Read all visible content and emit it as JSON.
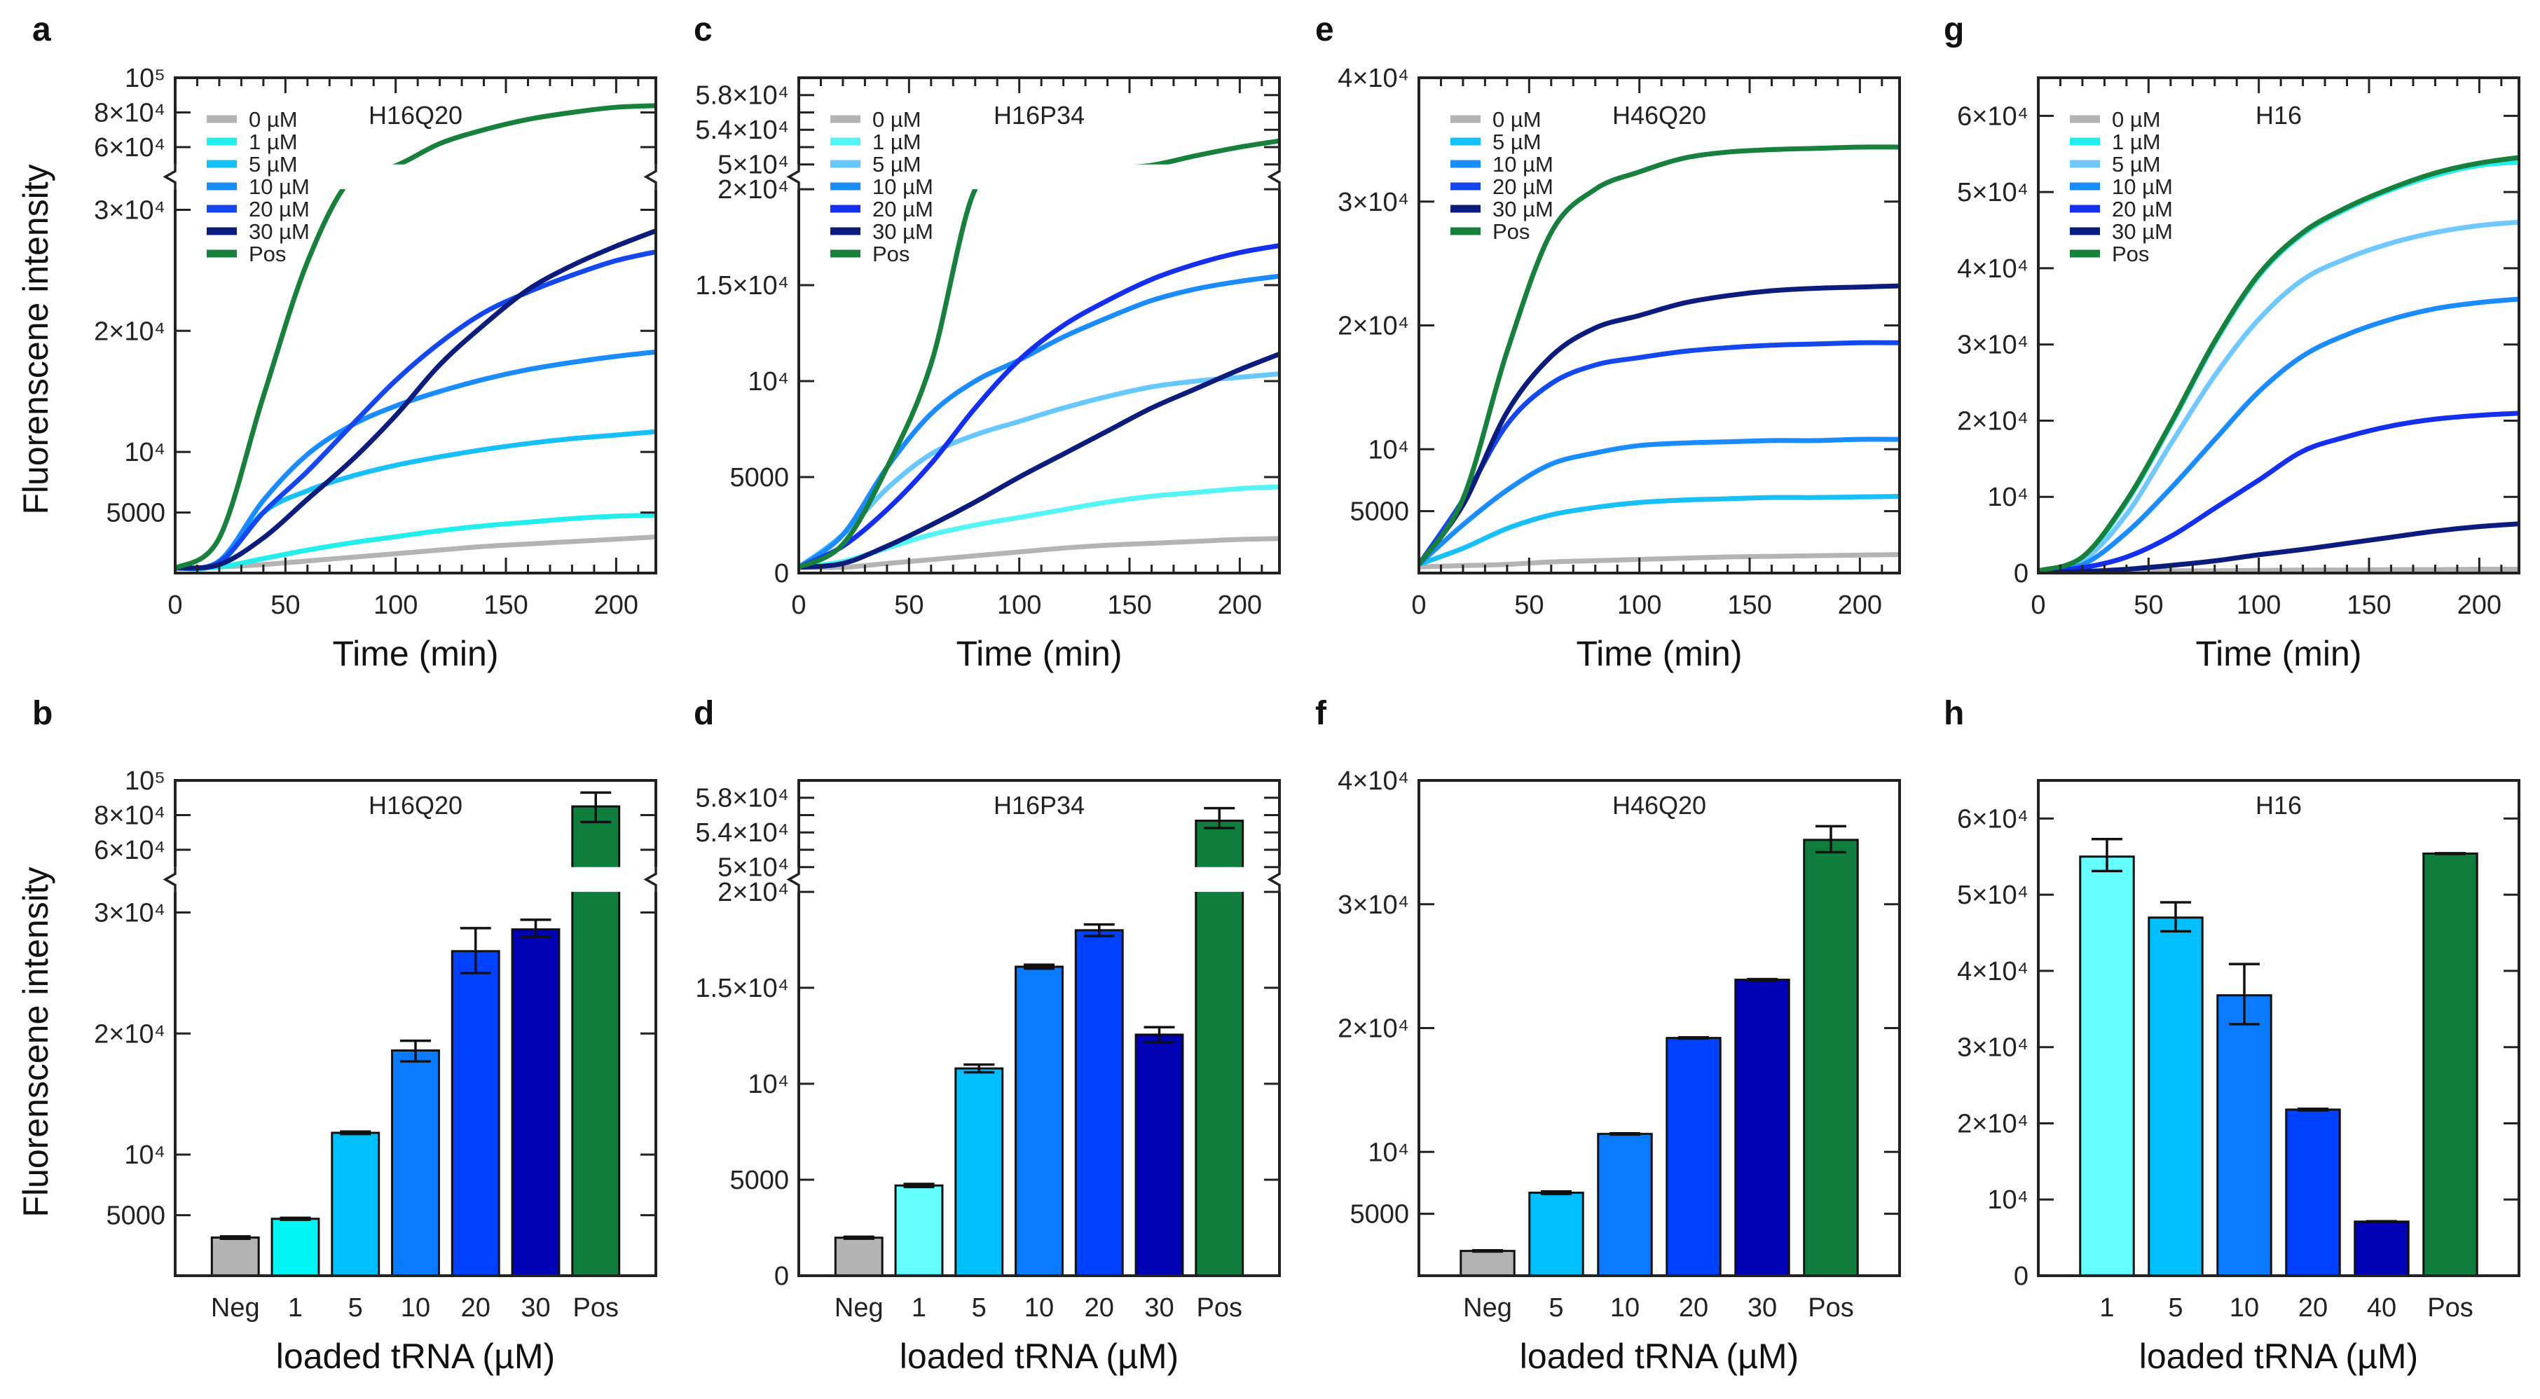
{
  "chart_data": [
    {
      "panel": "a",
      "type": "line",
      "title": "H16Q20",
      "xlabel": "Time (min)",
      "ylabel": "Fluorenscene intensity",
      "xlim": [
        0,
        218
      ],
      "x_ticks": [
        0,
        50,
        100,
        150,
        200
      ],
      "y_segments": [
        [
          0,
          31700
        ],
        [
          50000,
          100000
        ]
      ],
      "y_ticks": [
        {
          "v": 5000,
          "label": "5000"
        },
        {
          "v": 10000,
          "label": "10⁴"
        },
        {
          "v": 20000,
          "label": "2×10⁴"
        },
        {
          "v": 30000,
          "label": "3×10⁴"
        },
        {
          "v": 60000,
          "label": "6×10⁴"
        },
        {
          "v": 80000,
          "label": "8×10⁴"
        },
        {
          "v": 100000,
          "label": "10⁵"
        }
      ],
      "x": [
        0,
        20,
        40,
        60,
        80,
        100,
        120,
        140,
        160,
        180,
        200,
        220
      ],
      "series": [
        {
          "name": "0 µM",
          "color": "#b4b4b4",
          "values": [
            400,
            500,
            700,
            1000,
            1300,
            1600,
            1900,
            2200,
            2400,
            2600,
            2800,
            3000
          ]
        },
        {
          "name": "1 µM",
          "color": "#22eeee",
          "values": [
            400,
            500,
            1200,
            1900,
            2500,
            3000,
            3500,
            3900,
            4200,
            4500,
            4700,
            4800
          ]
        },
        {
          "name": "5 µM",
          "color": "#18c0fa",
          "values": [
            400,
            800,
            5000,
            6800,
            8000,
            8900,
            9600,
            10200,
            10700,
            11100,
            11400,
            11700
          ]
        },
        {
          "name": "10 µM",
          "color": "#1a8cff",
          "values": [
            400,
            1000,
            6000,
            9800,
            12200,
            13800,
            15000,
            16000,
            16800,
            17400,
            17900,
            18300
          ]
        },
        {
          "name": "20 µM",
          "color": "#1448ee",
          "values": [
            400,
            900,
            5000,
            8400,
            12200,
            15900,
            19000,
            21500,
            23200,
            24600,
            25800,
            26600
          ]
        },
        {
          "name": "30 µM",
          "color": "#0c1c7c",
          "values": [
            400,
            700,
            2900,
            6100,
            9300,
            13000,
            17200,
            20500,
            23400,
            25400,
            27000,
            28400
          ]
        },
        {
          "name": "Pos",
          "color": "#17803c",
          "values": [
            400,
            2900,
            14600,
            25700,
            40000,
            49000,
            62000,
            70000,
            76000,
            80000,
            83000,
            84000
          ]
        }
      ]
    },
    {
      "panel": "b",
      "type": "bar",
      "title": "H16Q20",
      "xlabel": "loaded tRNA (µM)",
      "ylabel": "Fluorenscene intensity",
      "y_segments": [
        [
          0,
          31700
        ],
        [
          50000,
          100000
        ]
      ],
      "y_ticks": [
        {
          "v": 5000,
          "label": "5000"
        },
        {
          "v": 10000,
          "label": "10⁴"
        },
        {
          "v": 20000,
          "label": "2×10⁴"
        },
        {
          "v": 30000,
          "label": "3×10⁴"
        },
        {
          "v": 60000,
          "label": "6×10⁴"
        },
        {
          "v": 80000,
          "label": "8×10⁴"
        },
        {
          "v": 100000,
          "label": "10⁵"
        }
      ],
      "categories": [
        "Neg",
        "1",
        "5",
        "10",
        "20",
        "30",
        "Pos"
      ],
      "values": [
        3150,
        4700,
        11800,
        18600,
        26800,
        28600,
        85000
      ],
      "errors": [
        [
          3050,
          3250
        ],
        [
          4620,
          4780
        ],
        [
          11700,
          11900
        ],
        [
          17700,
          19400
        ],
        [
          25000,
          28700
        ],
        [
          28000,
          29400
        ],
        [
          76000,
          93000
        ]
      ],
      "colors": [
        "#b3b3b3",
        "#00f5f5",
        "#00bfff",
        "#0a7bff",
        "#0040ff",
        "#0000b4",
        "#0f7d3c"
      ]
    },
    {
      "panel": "c",
      "type": "line",
      "title": "H16P34",
      "xlabel": "Time (min)",
      "xlim": [
        0,
        218
      ],
      "x_ticks": [
        0,
        50,
        100,
        150,
        200
      ],
      "y_segments": [
        [
          0,
          20000
        ],
        [
          50000,
          60000
        ]
      ],
      "y_ticks": [
        {
          "v": 0,
          "label": "0"
        },
        {
          "v": 5000,
          "label": "5000"
        },
        {
          "v": 10000,
          "label": "10⁴"
        },
        {
          "v": 15000,
          "label": "1.5×10⁴"
        },
        {
          "v": 20000,
          "label": "2×10⁴"
        },
        {
          "v": 50000,
          "label": "5×10⁴"
        },
        {
          "v": 54000,
          "label": "5.4×10⁴"
        },
        {
          "v": 58000,
          "label": "5.8×10⁴"
        }
      ],
      "y_minor_ticks": [
        52000,
        56000
      ],
      "x": [
        0,
        20,
        40,
        60,
        80,
        100,
        120,
        140,
        160,
        180,
        200,
        220
      ],
      "series": [
        {
          "name": "0 µM",
          "color": "#b4b4b4",
          "values": [
            300,
            300,
            500,
            700,
            900,
            1100,
            1300,
            1450,
            1550,
            1650,
            1750,
            1800
          ]
        },
        {
          "name": "1 µM",
          "color": "#55f5f5",
          "values": [
            300,
            600,
            1300,
            2000,
            2500,
            2900,
            3300,
            3700,
            4000,
            4200,
            4400,
            4500
          ]
        },
        {
          "name": "5 µM",
          "color": "#66c8ff",
          "values": [
            300,
            2000,
            4400,
            6200,
            7200,
            7900,
            8600,
            9200,
            9700,
            10000,
            10200,
            10400
          ]
        },
        {
          "name": "10 µM",
          "color": "#1a8cff",
          "values": [
            300,
            2000,
            5500,
            8300,
            10000,
            11100,
            12300,
            13300,
            14200,
            14800,
            15200,
            15500
          ]
        },
        {
          "name": "20 µM",
          "color": "#1430ee",
          "values": [
            300,
            1400,
            3300,
            5700,
            8600,
            11100,
            12900,
            14200,
            15300,
            16100,
            16700,
            17100
          ]
        },
        {
          "name": "30 µM",
          "color": "#0c1c7c",
          "values": [
            300,
            500,
            1400,
            2500,
            3700,
            5000,
            6200,
            7400,
            8600,
            9600,
            10600,
            11500
          ]
        },
        {
          "name": "Pos",
          "color": "#17803c",
          "values": [
            300,
            1500,
            5500,
            10900,
            20000,
            30000,
            40000,
            45000,
            49000,
            51000,
            52000,
            52800
          ]
        }
      ]
    },
    {
      "panel": "d",
      "type": "bar",
      "title": "H16P34",
      "xlabel": "loaded tRNA (µM)",
      "y_segments": [
        [
          0,
          20000
        ],
        [
          50000,
          60000
        ]
      ],
      "y_ticks": [
        {
          "v": 0,
          "label": "0"
        },
        {
          "v": 5000,
          "label": "5000"
        },
        {
          "v": 10000,
          "label": "10⁴"
        },
        {
          "v": 15000,
          "label": "1.5×10⁴"
        },
        {
          "v": 20000,
          "label": "2×10⁴"
        },
        {
          "v": 50000,
          "label": "5×10⁴"
        },
        {
          "v": 54000,
          "label": "5.4×10⁴"
        },
        {
          "v": 58000,
          "label": "5.8×10⁴"
        }
      ],
      "y_minor_ticks": [
        52000,
        56000
      ],
      "categories": [
        "Neg",
        "1",
        "5",
        "10",
        "20",
        "30",
        "Pos"
      ],
      "values": [
        1980,
        4700,
        10800,
        16100,
        18000,
        12560,
        55350
      ],
      "errors": [
        [
          1930,
          2030
        ],
        [
          4620,
          4780
        ],
        [
          10600,
          11000
        ],
        [
          16000,
          16200
        ],
        [
          17700,
          18300
        ],
        [
          12150,
          12950
        ],
        [
          54500,
          56800
        ]
      ],
      "colors": [
        "#b3b3b3",
        "#66ffff",
        "#00bfff",
        "#0a7bff",
        "#0040ff",
        "#0000b4",
        "#0f7d3c"
      ]
    },
    {
      "panel": "e",
      "type": "line",
      "title": "H46Q20",
      "xlabel": "Time (min)",
      "xlim": [
        0,
        218
      ],
      "x_ticks": [
        0,
        50,
        100,
        150,
        200
      ],
      "y_segments": [
        [
          0,
          40000
        ]
      ],
      "y_ticks": [
        {
          "v": 5000,
          "label": "5000"
        },
        {
          "v": 10000,
          "label": "10⁴"
        },
        {
          "v": 20000,
          "label": "2×10⁴"
        },
        {
          "v": 30000,
          "label": "3×10⁴"
        },
        {
          "v": 40000,
          "label": "4×10⁴"
        }
      ],
      "x": [
        0,
        20,
        40,
        60,
        80,
        100,
        120,
        140,
        160,
        180,
        200,
        220
      ],
      "series": [
        {
          "name": "0 µM",
          "color": "#b4b4b4",
          "values": [
            500,
            600,
            700,
            900,
            1000,
            1100,
            1200,
            1300,
            1350,
            1400,
            1450,
            1500
          ]
        },
        {
          "name": "5 µM",
          "color": "#18c0fa",
          "values": [
            700,
            2000,
            3600,
            4700,
            5300,
            5700,
            5900,
            6000,
            6100,
            6100,
            6150,
            6200
          ]
        },
        {
          "name": "10 µM",
          "color": "#1a8cff",
          "values": [
            700,
            3900,
            6700,
            8800,
            9700,
            10300,
            10500,
            10600,
            10700,
            10700,
            10800,
            10800
          ]
        },
        {
          "name": "20 µM",
          "color": "#1448ee",
          "values": [
            700,
            5900,
            12000,
            15300,
            16800,
            17400,
            17900,
            18200,
            18400,
            18500,
            18600,
            18600
          ]
        },
        {
          "name": "30 µM",
          "color": "#0c1c7c",
          "values": [
            700,
            5500,
            13000,
            17500,
            19800,
            20800,
            21800,
            22400,
            22800,
            23000,
            23100,
            23200
          ]
        },
        {
          "name": "Pos",
          "color": "#17803c",
          "values": [
            700,
            6000,
            17900,
            27500,
            31000,
            32400,
            33500,
            34000,
            34200,
            34300,
            34400,
            34400
          ]
        }
      ]
    },
    {
      "panel": "f",
      "type": "bar",
      "title": "H46Q20",
      "xlabel": "loaded tRNA (µM)",
      "y_segments": [
        [
          0,
          40000
        ]
      ],
      "y_ticks": [
        {
          "v": 5000,
          "label": "5000"
        },
        {
          "v": 10000,
          "label": "10⁴"
        },
        {
          "v": 20000,
          "label": "2×10⁴"
        },
        {
          "v": 30000,
          "label": "3×10⁴"
        },
        {
          "v": 40000,
          "label": "4×10⁴"
        }
      ],
      "categories": [
        "Neg",
        "5",
        "10",
        "20",
        "30",
        "Pos"
      ],
      "values": [
        2000,
        6700,
        11450,
        19200,
        23900,
        35200
      ],
      "errors": [
        [
          1950,
          2050
        ],
        [
          6600,
          6800
        ],
        [
          11400,
          11500
        ],
        [
          19150,
          19250
        ],
        [
          23850,
          23950
        ],
        [
          34200,
          36300
        ]
      ],
      "colors": [
        "#b3b3b3",
        "#00bfff",
        "#0a7bff",
        "#0040ff",
        "#0000b4",
        "#0f7d3c"
      ]
    },
    {
      "panel": "g",
      "type": "line",
      "title": "H16",
      "xlabel": "Time (min)",
      "xlim": [
        0,
        218
      ],
      "x_ticks": [
        0,
        50,
        100,
        150,
        200
      ],
      "y_segments": [
        [
          0,
          65000
        ]
      ],
      "y_ticks": [
        {
          "v": 0,
          "label": "0"
        },
        {
          "v": 10000,
          "label": "10⁴"
        },
        {
          "v": 20000,
          "label": "2×10⁴"
        },
        {
          "v": 30000,
          "label": "3×10⁴"
        },
        {
          "v": 40000,
          "label": "4×10⁴"
        },
        {
          "v": 50000,
          "label": "5×10⁴"
        },
        {
          "v": 60000,
          "label": "6×10⁴"
        }
      ],
      "x": [
        0,
        20,
        40,
        60,
        80,
        100,
        120,
        140,
        160,
        180,
        200,
        220
      ],
      "series": [
        {
          "name": "0 µM",
          "color": "#b4b4b4",
          "values": [
            200,
            200,
            250,
            300,
            300,
            350,
            400,
            400,
            450,
            450,
            500,
            500
          ]
        },
        {
          "name": "1 µM",
          "color": "#22eeee",
          "values": [
            300,
            2000,
            9300,
            19400,
            30200,
            39000,
            44500,
            47800,
            50300,
            52200,
            53500,
            54000
          ]
        },
        {
          "name": "5 µM",
          "color": "#70c8ff",
          "values": [
            300,
            1600,
            7700,
            16900,
            25900,
            33300,
            38500,
            41300,
            43300,
            44700,
            45600,
            46100
          ]
        },
        {
          "name": "10 µM",
          "color": "#1a8cff",
          "values": [
            300,
            1100,
            5300,
            11100,
            17500,
            23800,
            28500,
            31300,
            33300,
            34700,
            35500,
            36000
          ]
        },
        {
          "name": "20 µM",
          "color": "#1430ee",
          "values": [
            200,
            700,
            2100,
            4800,
            8500,
            12200,
            16000,
            17900,
            19300,
            20200,
            20700,
            21000
          ]
        },
        {
          "name": "30 µM",
          "color": "#0c1c7c",
          "values": [
            100,
            200,
            500,
            1000,
            1600,
            2400,
            3100,
            3900,
            4700,
            5500,
            6100,
            6500
          ]
        },
        {
          "name": "Pos",
          "color": "#17803c",
          "values": [
            300,
            2100,
            9500,
            19600,
            30400,
            39200,
            44700,
            48000,
            50500,
            52500,
            53800,
            54600
          ]
        }
      ]
    },
    {
      "panel": "h",
      "type": "bar",
      "title": "H16",
      "xlabel": "loaded tRNA (µM)",
      "y_segments": [
        [
          0,
          65000
        ]
      ],
      "y_ticks": [
        {
          "v": 0,
          "label": "0"
        },
        {
          "v": 10000,
          "label": "10⁴"
        },
        {
          "v": 20000,
          "label": "2×10⁴"
        },
        {
          "v": 30000,
          "label": "3×10⁴"
        },
        {
          "v": 40000,
          "label": "4×10⁴"
        },
        {
          "v": 50000,
          "label": "5×10⁴"
        },
        {
          "v": 60000,
          "label": "6×10⁴"
        }
      ],
      "categories": [
        "1",
        "5",
        "10",
        "20",
        "40",
        "Pos"
      ],
      "values": [
        55000,
        47000,
        36800,
        21800,
        7100,
        55400
      ],
      "errors": [
        [
          53100,
          57300
        ],
        [
          45200,
          49000
        ],
        [
          33000,
          40900
        ],
        [
          21700,
          21900
        ],
        [
          7050,
          7150
        ],
        [
          55350,
          55450
        ]
      ],
      "colors": [
        "#66ffff",
        "#00bfff",
        "#0a7bff",
        "#0040ff",
        "#0000b4",
        "#0f7d3c"
      ]
    }
  ]
}
